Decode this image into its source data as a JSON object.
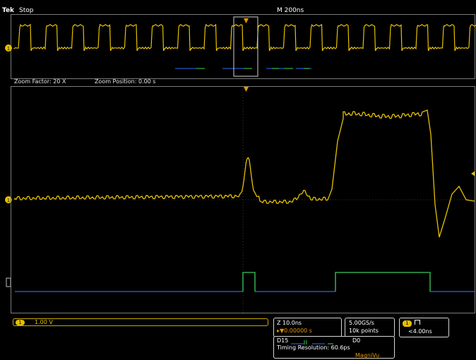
{
  "header": {
    "brand": "Tek",
    "acq_state": "Stop",
    "timebase": "M 200ns"
  },
  "zoom": {
    "factor_text": "Zoom Factor: 20 X",
    "position_text": "Zoom Position: 0.00 s"
  },
  "markers": {
    "channel1": "1",
    "trigger": "T"
  },
  "readouts": {
    "ch1_label": "1",
    "ch1_scale": "1.00 V",
    "zoom_scale": "Z 10.0ns",
    "trigger_position": "▸▼0.00000 s",
    "sample_rate": "5.00GS/s",
    "record_length": "10k points",
    "trig_channel": "1",
    "trig_value": "<4.00ns",
    "digital_high": "D15",
    "digital_low": "D0",
    "timing_resolution": "Timing Resolution: 60.6ps",
    "magnivu": "MagniVu"
  },
  "colors": {
    "analog": "#e5c100",
    "digital_low": "#2b52c9",
    "digital_high": "#2fa84a",
    "grid": "#555555"
  }
}
